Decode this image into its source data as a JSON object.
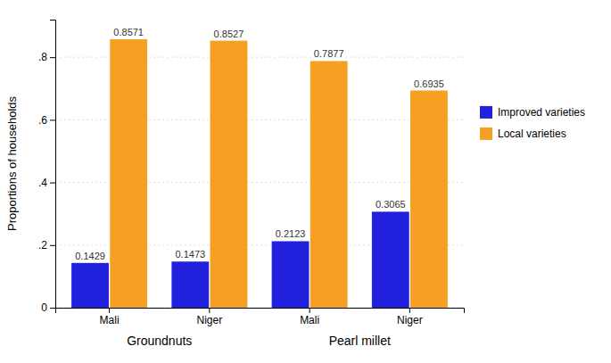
{
  "chart_data": {
    "type": "bar",
    "categories": [
      "Mali",
      "Niger",
      "Mali",
      "Niger"
    ],
    "groups": [
      "Groundnuts",
      "Pearl millet"
    ],
    "series": [
      {
        "name": "Improved varieties",
        "color": "#2020dd",
        "values": [
          0.1429,
          0.1473,
          0.2123,
          0.3065
        ]
      },
      {
        "name": "Local varieties",
        "color": "#f5a022",
        "values": [
          0.8571,
          0.8527,
          0.7877,
          0.6935
        ]
      }
    ],
    "y_label": "Proportions of households",
    "ylim": [
      0,
      0.92
    ],
    "yticks": [
      0,
      {
        "value": 0.2,
        "label": ".2"
      },
      {
        "value": 0.4,
        "label": ".4"
      },
      {
        "value": 0.6,
        "label": ".6"
      },
      {
        "value": 0.8,
        "label": ".8"
      }
    ],
    "grid": true,
    "legend": "right",
    "data_labels": true
  }
}
